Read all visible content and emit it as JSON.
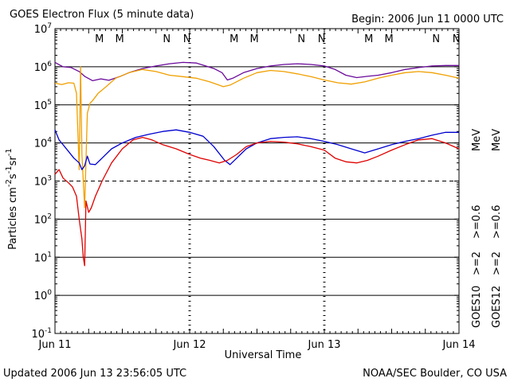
{
  "header": {
    "title": "GOES Electron Flux (5 minute data)",
    "begin": "Begin: 2006 Jun 11 0000 UTC"
  },
  "footer": {
    "updated": "Updated 2006 Jun 13 23:56:05 UTC",
    "credit": "NOAA/SEC Boulder, CO USA"
  },
  "chart_data": {
    "type": "line",
    "title": "GOES Electron Flux (5 minute data)",
    "xlabel": "Universal Time",
    "ylabel": "Particles cm-2s-1sr-1",
    "y_scale": "log",
    "ylim": [
      0.1,
      10000000
    ],
    "y_ticks": [
      {
        "value": 10000000,
        "base": "10",
        "exp": "7"
      },
      {
        "value": 1000000,
        "base": "10",
        "exp": "6"
      },
      {
        "value": 100000,
        "base": "10",
        "exp": "5"
      },
      {
        "value": 10000,
        "base": "10",
        "exp": "4"
      },
      {
        "value": 1000,
        "base": "10",
        "exp": "3"
      },
      {
        "value": 100,
        "base": "10",
        "exp": "2"
      },
      {
        "value": 10,
        "base": "10",
        "exp": "1"
      },
      {
        "value": 1,
        "base": "10",
        "exp": "0"
      },
      {
        "value": 0.1,
        "base": "10",
        "exp": "-1"
      }
    ],
    "x_unit": "days since 2006 Jun 11 0000 UTC",
    "xlim": [
      0,
      3
    ],
    "x_ticks": [
      {
        "value": 0,
        "label": "Jun 11"
      },
      {
        "value": 1,
        "label": "Jun 12"
      },
      {
        "value": 2,
        "label": "Jun 13"
      },
      {
        "value": 3,
        "label": "Jun 14"
      }
    ],
    "grid": "horizontal solid lines at each decade; dashed line at 10^3",
    "markers": [
      {
        "x": 0.33,
        "label": "M",
        "color": "#d00000"
      },
      {
        "x": 0.48,
        "label": "M",
        "color": "#0000d0"
      },
      {
        "x": 0.83,
        "label": "N",
        "color": "#d00000"
      },
      {
        "x": 0.98,
        "label": "N",
        "color": "#0000d0"
      },
      {
        "x": 1.33,
        "label": "M",
        "color": "#d00000"
      },
      {
        "x": 1.48,
        "label": "M",
        "color": "#0000d0"
      },
      {
        "x": 1.83,
        "label": "N",
        "color": "#d00000"
      },
      {
        "x": 1.98,
        "label": "N",
        "color": "#0000d0"
      },
      {
        "x": 2.33,
        "label": "M",
        "color": "#d00000"
      },
      {
        "x": 2.48,
        "label": "M",
        "color": "#0000d0"
      },
      {
        "x": 2.83,
        "label": "N",
        "color": "#d00000"
      },
      {
        "x": 2.98,
        "label": "N",
        "color": "#0000d0"
      }
    ],
    "legend": {
      "goes10_label": "GOES10",
      "goes12_label": "GOES12",
      "ge2_label": ">=2",
      "ge06_label": ">=0.6",
      "unit_label": "MeV",
      "goes10_ge2_color": "#0000d0",
      "goes10_ge06_color": "#6a0a9a",
      "goes12_ge2_color": "#e00000",
      "goes12_ge06_color": "#f0a000"
    },
    "series": [
      {
        "satellite": "GOES10",
        "energy": ">=0.6 MeV",
        "color": "#6a0a9a",
        "points": [
          [
            0,
            1300000
          ],
          [
            0.06,
            1000000
          ],
          [
            0.12,
            950000
          ],
          [
            0.18,
            750000
          ],
          [
            0.22,
            560000
          ],
          [
            0.28,
            430000
          ],
          [
            0.34,
            480000
          ],
          [
            0.4,
            440000
          ],
          [
            0.48,
            550000
          ],
          [
            0.55,
            700000
          ],
          [
            0.65,
            900000
          ],
          [
            0.75,
            1050000
          ],
          [
            0.85,
            1200000
          ],
          [
            0.95,
            1300000
          ],
          [
            1.05,
            1250000
          ],
          [
            1.1,
            1100000
          ],
          [
            1.18,
            900000
          ],
          [
            1.24,
            700000
          ],
          [
            1.28,
            450000
          ],
          [
            1.32,
            500000
          ],
          [
            1.4,
            700000
          ],
          [
            1.5,
            900000
          ],
          [
            1.6,
            1050000
          ],
          [
            1.7,
            1150000
          ],
          [
            1.8,
            1200000
          ],
          [
            1.9,
            1150000
          ],
          [
            2.0,
            1050000
          ],
          [
            2.08,
            850000
          ],
          [
            2.16,
            600000
          ],
          [
            2.24,
            520000
          ],
          [
            2.32,
            560000
          ],
          [
            2.4,
            600000
          ],
          [
            2.5,
            700000
          ],
          [
            2.6,
            850000
          ],
          [
            2.7,
            950000
          ],
          [
            2.8,
            1050000
          ],
          [
            2.9,
            1080000
          ],
          [
            3.0,
            1080000
          ]
        ]
      },
      {
        "satellite": "GOES12",
        "energy": ">=0.6 MeV",
        "color": "#f0a000",
        "points": [
          [
            0,
            370000
          ],
          [
            0.05,
            340000
          ],
          [
            0.1,
            380000
          ],
          [
            0.14,
            370000
          ],
          [
            0.16,
            200000
          ],
          [
            0.18,
            2000
          ],
          [
            0.19,
            1000000
          ],
          [
            0.2,
            5000
          ],
          [
            0.22,
            200
          ],
          [
            0.24,
            60000
          ],
          [
            0.26,
            110000
          ],
          [
            0.28,
            130000
          ],
          [
            0.32,
            200000
          ],
          [
            0.38,
            300000
          ],
          [
            0.45,
            500000
          ],
          [
            0.55,
            700000
          ],
          [
            0.65,
            850000
          ],
          [
            0.75,
            750000
          ],
          [
            0.85,
            600000
          ],
          [
            0.95,
            550000
          ],
          [
            1.05,
            500000
          ],
          [
            1.15,
            400000
          ],
          [
            1.25,
            300000
          ],
          [
            1.3,
            330000
          ],
          [
            1.4,
            500000
          ],
          [
            1.5,
            700000
          ],
          [
            1.6,
            800000
          ],
          [
            1.7,
            750000
          ],
          [
            1.8,
            650000
          ],
          [
            1.9,
            550000
          ],
          [
            2.0,
            450000
          ],
          [
            2.1,
            380000
          ],
          [
            2.2,
            350000
          ],
          [
            2.3,
            400000
          ],
          [
            2.4,
            500000
          ],
          [
            2.5,
            600000
          ],
          [
            2.6,
            700000
          ],
          [
            2.7,
            750000
          ],
          [
            2.8,
            700000
          ],
          [
            2.9,
            600000
          ],
          [
            3.0,
            500000
          ]
        ]
      },
      {
        "satellite": "GOES10",
        "energy": ">=2 MeV",
        "color": "#0000d0",
        "points": [
          [
            0,
            22000
          ],
          [
            0.03,
            12000
          ],
          [
            0.06,
            9000
          ],
          [
            0.1,
            6000
          ],
          [
            0.14,
            4000
          ],
          [
            0.18,
            3000
          ],
          [
            0.2,
            2000
          ],
          [
            0.22,
            2500
          ],
          [
            0.24,
            4500
          ],
          [
            0.26,
            2800
          ],
          [
            0.3,
            2700
          ],
          [
            0.35,
            4000
          ],
          [
            0.42,
            7000
          ],
          [
            0.5,
            10000
          ],
          [
            0.6,
            14000
          ],
          [
            0.7,
            17000
          ],
          [
            0.8,
            20000
          ],
          [
            0.9,
            22000
          ],
          [
            1.0,
            19000
          ],
          [
            1.1,
            15000
          ],
          [
            1.18,
            8000
          ],
          [
            1.26,
            3500
          ],
          [
            1.3,
            2700
          ],
          [
            1.35,
            4000
          ],
          [
            1.42,
            7000
          ],
          [
            1.5,
            10000
          ],
          [
            1.6,
            13000
          ],
          [
            1.7,
            14000
          ],
          [
            1.8,
            14500
          ],
          [
            1.9,
            13000
          ],
          [
            2.0,
            11000
          ],
          [
            2.1,
            9000
          ],
          [
            2.2,
            7000
          ],
          [
            2.3,
            5500
          ],
          [
            2.4,
            7000
          ],
          [
            2.5,
            9000
          ],
          [
            2.6,
            11000
          ],
          [
            2.7,
            13000
          ],
          [
            2.8,
            16000
          ],
          [
            2.9,
            19000
          ],
          [
            3.0,
            19000
          ]
        ]
      },
      {
        "satellite": "GOES12",
        "energy": ">=2 MeV",
        "color": "#e00000",
        "points": [
          [
            0,
            1500
          ],
          [
            0.03,
            2000
          ],
          [
            0.06,
            1200
          ],
          [
            0.1,
            900
          ],
          [
            0.13,
            700
          ],
          [
            0.16,
            400
          ],
          [
            0.18,
            100
          ],
          [
            0.2,
            30
          ],
          [
            0.21,
            10
          ],
          [
            0.22,
            6
          ],
          [
            0.23,
            300
          ],
          [
            0.25,
            150
          ],
          [
            0.27,
            200
          ],
          [
            0.3,
            400
          ],
          [
            0.35,
            1000
          ],
          [
            0.42,
            3000
          ],
          [
            0.5,
            7000
          ],
          [
            0.58,
            12000
          ],
          [
            0.65,
            14000
          ],
          [
            0.72,
            12000
          ],
          [
            0.8,
            9000
          ],
          [
            0.9,
            7000
          ],
          [
            1.0,
            5000
          ],
          [
            1.08,
            4000
          ],
          [
            1.15,
            3500
          ],
          [
            1.22,
            3000
          ],
          [
            1.28,
            3500
          ],
          [
            1.35,
            5000
          ],
          [
            1.42,
            8000
          ],
          [
            1.5,
            10000
          ],
          [
            1.6,
            11000
          ],
          [
            1.7,
            10500
          ],
          [
            1.8,
            9500
          ],
          [
            1.9,
            8000
          ],
          [
            2.0,
            6500
          ],
          [
            2.08,
            4000
          ],
          [
            2.16,
            3200
          ],
          [
            2.24,
            3000
          ],
          [
            2.32,
            3500
          ],
          [
            2.4,
            4500
          ],
          [
            2.5,
            6500
          ],
          [
            2.6,
            9000
          ],
          [
            2.7,
            12000
          ],
          [
            2.8,
            13000
          ],
          [
            2.9,
            10000
          ],
          [
            3.0,
            7000
          ]
        ]
      }
    ]
  }
}
